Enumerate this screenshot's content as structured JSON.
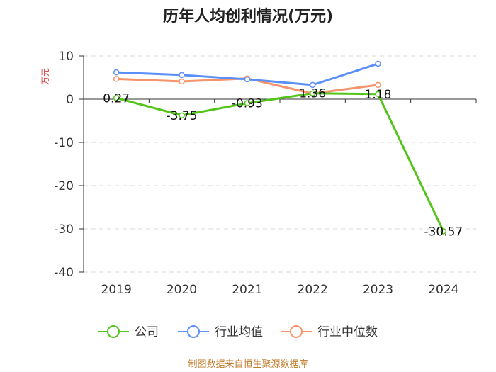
{
  "chart_data": {
    "type": "line",
    "title": "历年人均创利情况(万元)",
    "ylabel": "万元",
    "xlabel": "",
    "categories": [
      "2019",
      "2020",
      "2021",
      "2022",
      "2023",
      "2024"
    ],
    "ylim": [
      -40,
      10
    ],
    "yticks": [
      10,
      0,
      -10,
      -20,
      -30,
      -40
    ],
    "grid": true,
    "legend_position": "bottom",
    "series": [
      {
        "name": "公司",
        "color": "#52c41a",
        "values": [
          0.27,
          -3.75,
          -0.93,
          1.36,
          1.18,
          -30.57
        ],
        "labels": [
          "0.27",
          "-3.75",
          "-0.93",
          "1.36",
          "1.18",
          "-30.57"
        ]
      },
      {
        "name": "行业均值",
        "color": "#5b8ff9",
        "values": [
          6.2,
          5.6,
          4.6,
          3.3,
          8.2,
          null
        ]
      },
      {
        "name": "行业中位数",
        "color": "#f6936b",
        "values": [
          4.7,
          4.1,
          4.8,
          1.3,
          3.3,
          null
        ]
      }
    ],
    "source": "制图数据来自恒生聚源数据库"
  }
}
